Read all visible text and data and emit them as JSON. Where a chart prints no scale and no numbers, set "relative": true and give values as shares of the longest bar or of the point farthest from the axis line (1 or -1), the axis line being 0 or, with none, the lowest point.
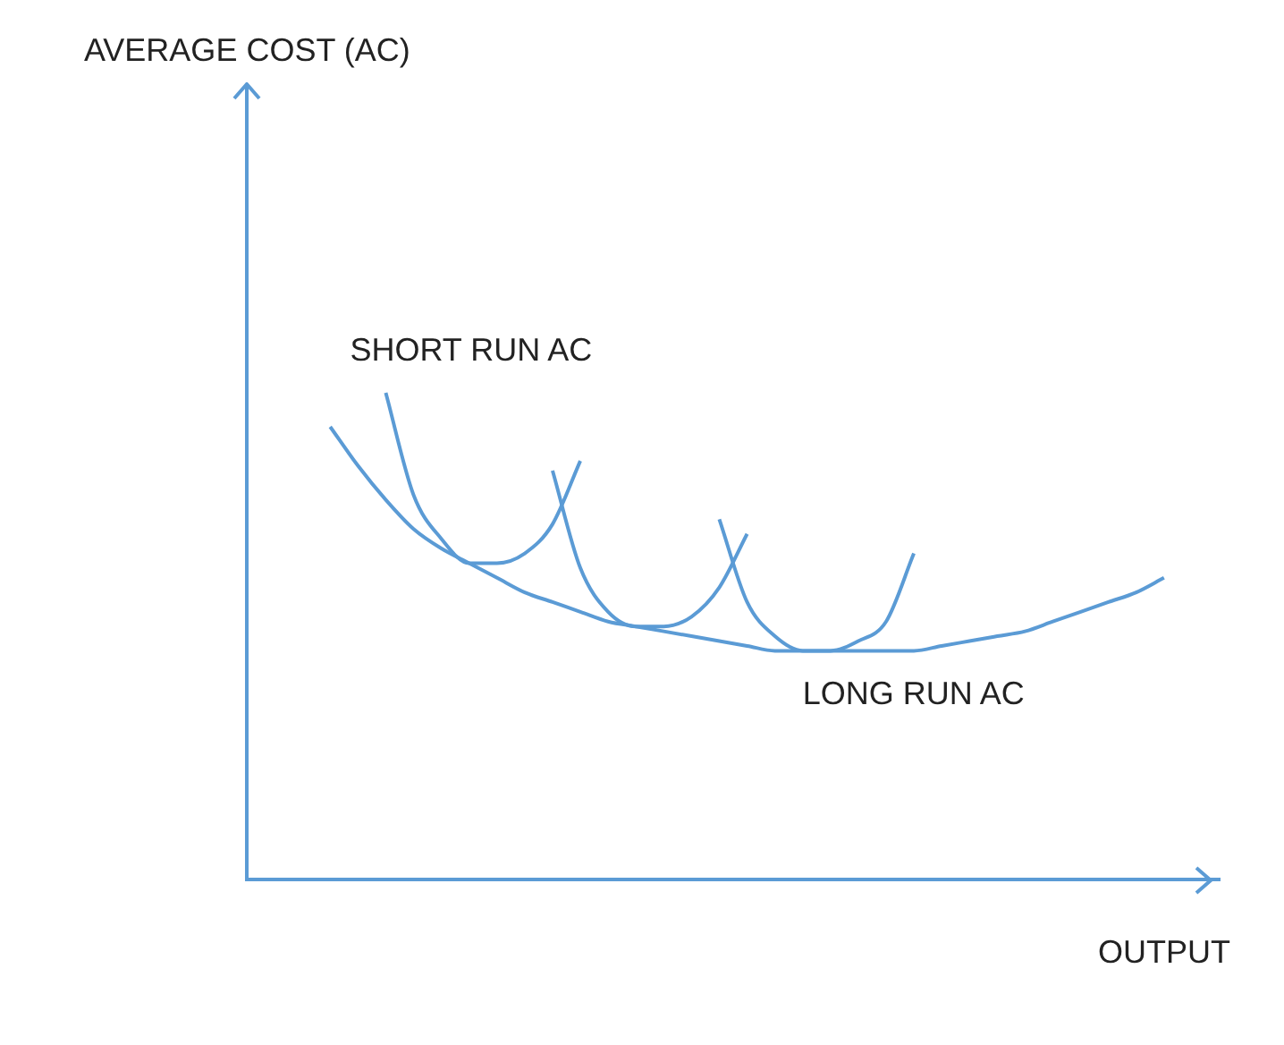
{
  "chart_data": {
    "type": "line",
    "relative": true,
    "xlabel": "OUTPUT",
    "annotations": [
      "AVERAGE COST (AC)"
    ],
    "grid": false,
    "legend": false,
    "marker": "none",
    "line_style": "solid",
    "categories": [
      null,
      null,
      null,
      null,
      null,
      null,
      null,
      null,
      null,
      null,
      null,
      null,
      null,
      null,
      null,
      null,
      null,
      null,
      null,
      null,
      null,
      null,
      null,
      null,
      null,
      null,
      null,
      null,
      null,
      null,
      null,
      null,
      null,
      null,
      null,
      null
    ],
    "series": [
      {
        "name": "LONG RUN AC",
        "color": "#5b9bd5",
        "values": [
          null,
          null,
          null,
          0.93,
          0.85,
          0.78,
          0.72,
          0.68,
          0.65,
          0.62,
          0.59,
          0.57,
          0.55,
          0.53,
          0.52,
          0.51,
          0.5,
          0.49,
          0.48,
          0.47,
          0.47,
          0.47,
          0.47,
          0.47,
          0.47,
          0.48,
          0.49,
          0.5,
          0.51,
          0.53,
          0.55,
          0.57,
          0.59,
          0.62,
          null,
          null
        ]
      },
      {
        "name": "SHORT RUN AC",
        "color": "#5b9bd5",
        "values": [
          null,
          null,
          null,
          null,
          null,
          1.0,
          0.79,
          0.7,
          0.65,
          0.65,
          0.67,
          0.73,
          0.86,
          null,
          null,
          null,
          null,
          null,
          null,
          null,
          null,
          null,
          null,
          null,
          null,
          null,
          null,
          null,
          null,
          null,
          null,
          null,
          null,
          null,
          null,
          null
        ]
      },
      {
        "color": "#5b9bd5",
        "values": [
          null,
          null,
          null,
          null,
          null,
          null,
          null,
          null,
          null,
          null,
          null,
          0.84,
          0.64,
          0.55,
          0.52,
          0.52,
          0.54,
          0.6,
          0.71,
          null,
          null,
          null,
          null,
          null,
          null,
          null,
          null,
          null,
          null,
          null,
          null,
          null,
          null,
          null,
          null,
          null
        ]
      },
      {
        "color": "#5b9bd5",
        "values": [
          null,
          null,
          null,
          null,
          null,
          null,
          null,
          null,
          null,
          null,
          null,
          null,
          null,
          null,
          null,
          null,
          null,
          0.74,
          0.57,
          0.5,
          0.47,
          0.47,
          0.49,
          0.53,
          0.67,
          null,
          null,
          null,
          null,
          null,
          null,
          null,
          null,
          null,
          null,
          null
        ]
      }
    ]
  }
}
